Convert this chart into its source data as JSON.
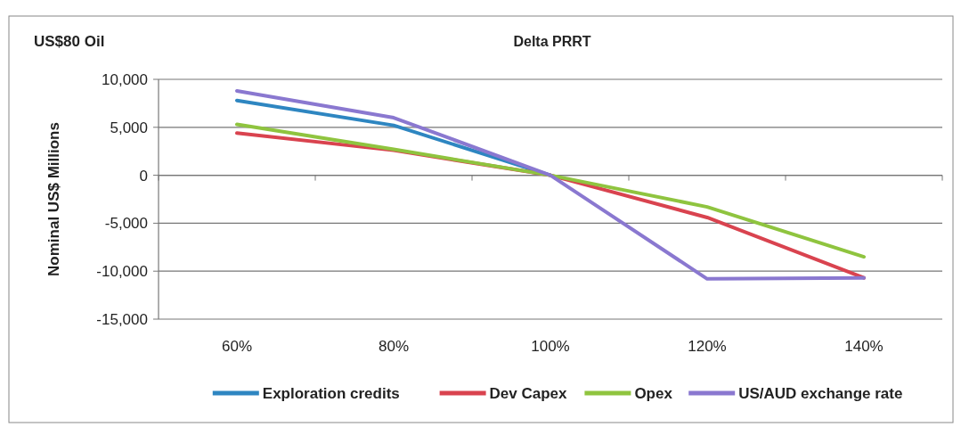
{
  "chart_data": {
    "type": "line",
    "title": "Delta PRRT",
    "ylabel": "Nominal US$ Millions",
    "annotations": [
      "US$80 Oil"
    ],
    "categories": [
      "60%",
      "80%",
      "100%",
      "120%",
      "140%"
    ],
    "series": [
      {
        "name": "Exploration credits",
        "color": "#2e86c1",
        "values": [
          7800,
          5200,
          0,
          null,
          null
        ]
      },
      {
        "name": "Dev Capex",
        "color": "#d9434f",
        "values": [
          4400,
          2600,
          0,
          -4400,
          -10700
        ]
      },
      {
        "name": "Opex",
        "color": "#8fc43f",
        "values": [
          5300,
          2700,
          0,
          -3300,
          -8500
        ]
      },
      {
        "name": "US/AUD exchange rate",
        "color": "#8a78d0",
        "values": [
          8800,
          6000,
          0,
          -10800,
          -10700
        ]
      }
    ],
    "ylim": [
      -15000,
      10000
    ],
    "yticks": [
      {
        "value": -15000,
        "label": "-15,000"
      },
      {
        "value": -10000,
        "label": "-10,000"
      },
      {
        "value": -5000,
        "label": "-5,000"
      },
      0,
      {
        "value": 5000,
        "label": "5,000"
      },
      {
        "value": 10000,
        "label": "10,000"
      }
    ],
    "grid": "y",
    "legend": "bottom",
    "marker": "none",
    "line_style": "solid"
  }
}
